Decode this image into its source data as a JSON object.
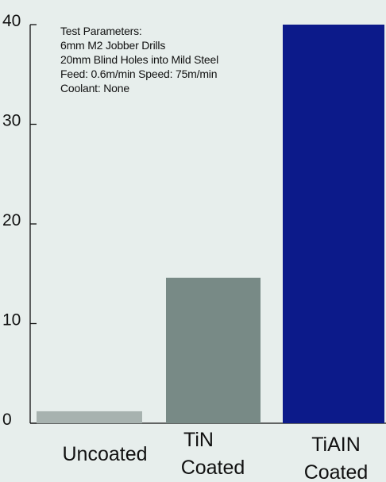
{
  "chart_data": {
    "type": "bar",
    "categories": [
      [
        "Uncoated"
      ],
      [
        "TiN",
        "Coated"
      ],
      [
        "TiAIN",
        "Coated"
      ]
    ],
    "values": [
      1.2,
      14.6,
      40
    ],
    "bar_colors": [
      "#a7b2af",
      "#788a86",
      "#0c1a8a"
    ],
    "y_ticks": [
      "0",
      "10",
      "20",
      "30",
      "40"
    ],
    "ylim": [
      0,
      40
    ],
    "annotation_lines": [
      "Test Parameters:",
      "6mm M2 Jobber Drills",
      "20mm Blind Holes into Mild Steel",
      "Feed: 0.6m/min  Speed: 75m/min",
      "Coolant:  None"
    ],
    "grid": false,
    "legend": "none"
  }
}
